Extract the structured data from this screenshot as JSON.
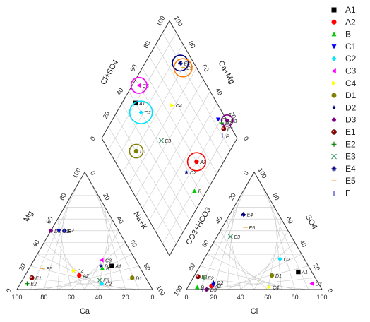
{
  "chart_data": {
    "type": "scatter",
    "subtype": "piper-diagram",
    "axis_labels": {
      "left_ternary_bottom": "Ca",
      "left_ternary_left": "Mg",
      "left_ternary_right": "Na+K",
      "right_ternary_bottom": "Cl",
      "right_ternary_left": "CO3+HCO3",
      "right_ternary_right": "SO4",
      "diamond_upper_left": "Cl+SO4",
      "diamond_upper_right": "Ca+Mg"
    },
    "ticks": [
      "0",
      "20",
      "40",
      "60",
      "80",
      "100"
    ],
    "legend_position": "right",
    "series": [
      {
        "name": "A1",
        "marker": "square",
        "color": "#000000",
        "size": 4,
        "cation": {
          "ca": 20,
          "mg": 20,
          "nak": 60
        },
        "anion": {
          "cl": 75,
          "so4": 15,
          "hco3": 10
        }
      },
      {
        "name": "A2",
        "marker": "circle",
        "color": "#ff0000",
        "size": 16,
        "cation": {
          "ca": 48,
          "mg": 12,
          "nak": 40
        },
        "anion": {
          "cl": 17,
          "so4": 3,
          "hco3": 80
        }
      },
      {
        "name": "B",
        "marker": "triangle-up",
        "color": "#00cc00",
        "size": 6,
        "cation": {
          "ca": 28,
          "mg": 18,
          "nak": 54
        },
        "anion": {
          "cl": 7,
          "so4": 2,
          "hco3": 91
        }
      },
      {
        "name": "C1",
        "marker": "triangle-down",
        "color": "#0000ff",
        "size": 6,
        "cation": {
          "ca": 44,
          "mg": 50,
          "nak": 6
        },
        "anion": {
          "cl": 18,
          "so4": 4,
          "hco3": 78
        }
      },
      {
        "name": "C2",
        "marker": "diamond",
        "color": "#00e5ff",
        "size": 20,
        "cation": {
          "ca": 35,
          "mg": 5,
          "nak": 60
        },
        "anion": {
          "cl": 56,
          "so4": 26,
          "hco3": 18
        }
      },
      {
        "name": "C3",
        "marker": "triangle-left",
        "color": "#ff00ff",
        "size": 14,
        "cation": {
          "ca": 25,
          "mg": 25,
          "nak": 50
        },
        "anion": {
          "cl": 90,
          "so4": 5,
          "hco3": 5
        }
      },
      {
        "name": "C4",
        "marker": "triangle-right",
        "color": "#ffff00",
        "size": 8,
        "cation": {
          "ca": 50,
          "mg": 16,
          "nak": 34
        },
        "anion": {
          "cl": 60,
          "so4": 2,
          "hco3": 38
        }
      },
      {
        "name": "D1",
        "marker": "circle",
        "color": "#808000",
        "size": 12,
        "cation": {
          "ca": 10,
          "mg": 10,
          "nak": 80
        },
        "anion": {
          "cl": 57,
          "so4": 12,
          "hco3": 31
        }
      },
      {
        "name": "D2",
        "marker": "star",
        "color": "#000080",
        "size": 8,
        "cation": {
          "ca": 28,
          "mg": 20,
          "nak": 52
        },
        "anion": {
          "cl": 17,
          "so4": 6,
          "hco3": 77
        }
      },
      {
        "name": "D3",
        "marker": "pentagon",
        "color": "#800080",
        "size": 10,
        "cation": {
          "ca": 50,
          "mg": 50,
          "nak": 0
        },
        "anion": {
          "cl": 15,
          "so4": 0,
          "hco3": 85
        }
      },
      {
        "name": "E1",
        "marker": "sphere",
        "color": "#8b0000",
        "size": 6,
        "cation": {
          "ca": 84,
          "mg": 10,
          "nak": 6
        },
        "anion": {
          "cl": 3,
          "so4": 11,
          "hco3": 86
        }
      },
      {
        "name": "E2",
        "marker": "plus",
        "color": "#008000",
        "size": 8,
        "cation": {
          "ca": 90,
          "mg": 5,
          "nak": 5
        },
        "anion": {
          "cl": 8,
          "so4": 10,
          "hco3": 82
        }
      },
      {
        "name": "E3",
        "marker": "cross",
        "color": "#2e8b57",
        "size": 6,
        "cation": {
          "ca": 35,
          "mg": 8,
          "nak": 57
        },
        "anion": {
          "cl": 10,
          "so4": 45,
          "hco3": 45
        }
      },
      {
        "name": "E4",
        "marker": "asterisk",
        "color": "#000080",
        "size": 14,
        "cation": {
          "ca": 40,
          "mg": 50,
          "nak": 10
        },
        "anion": {
          "cl": 10,
          "so4": 64,
          "hco3": 26
        }
      },
      {
        "name": "E5",
        "marker": "dash",
        "color": "#ff8000",
        "size": 16,
        "cation": {
          "ca": 72,
          "mg": 18,
          "nak": 10
        },
        "anion": {
          "cl": 17,
          "so4": 53,
          "hco3": 30
        }
      },
      {
        "name": "F",
        "marker": "vline",
        "color": "#4040c0",
        "size": 8,
        "cation": {
          "ca": 40,
          "mg": 50,
          "nak": 10
        },
        "anion": {
          "cl": 12,
          "so4": 0,
          "hco3": 88
        }
      }
    ]
  }
}
